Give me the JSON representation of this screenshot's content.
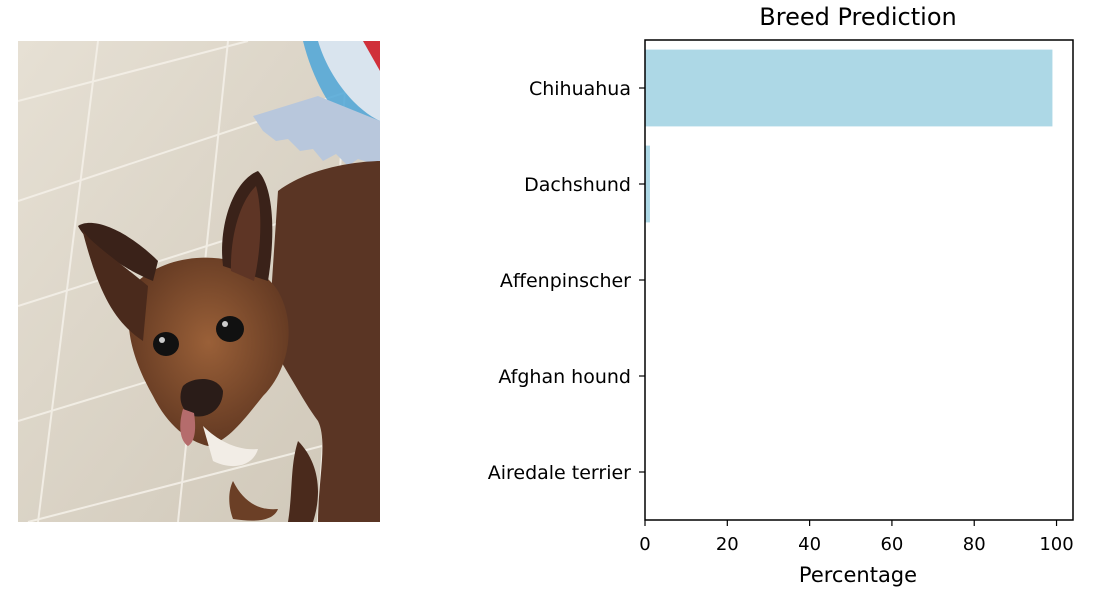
{
  "chart_data": {
    "type": "bar",
    "orientation": "horizontal",
    "title": "Breed Prediction",
    "xlabel": "Percentage",
    "ylabel": "",
    "categories": [
      "Chihuahua",
      "Dachshund",
      "Affenpinscher",
      "Afghan hound",
      "Airedale terrier"
    ],
    "values": [
      99.0,
      1.2,
      0.0,
      0.0,
      0.0
    ],
    "xlim": [
      0,
      104
    ],
    "xticks": [
      0,
      20,
      40,
      60,
      80,
      100
    ],
    "xtick_labels": [
      "0",
      "20",
      "40",
      "60",
      "80",
      "100"
    ],
    "bar_color": "#add8e6",
    "grid": false,
    "legend": "none"
  },
  "photo": {
    "subject": "dog photo",
    "colors": {
      "floor": "#ddd6c8",
      "fur": "#6b3f26",
      "ear": "#3a2219",
      "mat": "#b8c7dc",
      "toy": "#4da6d8"
    }
  }
}
